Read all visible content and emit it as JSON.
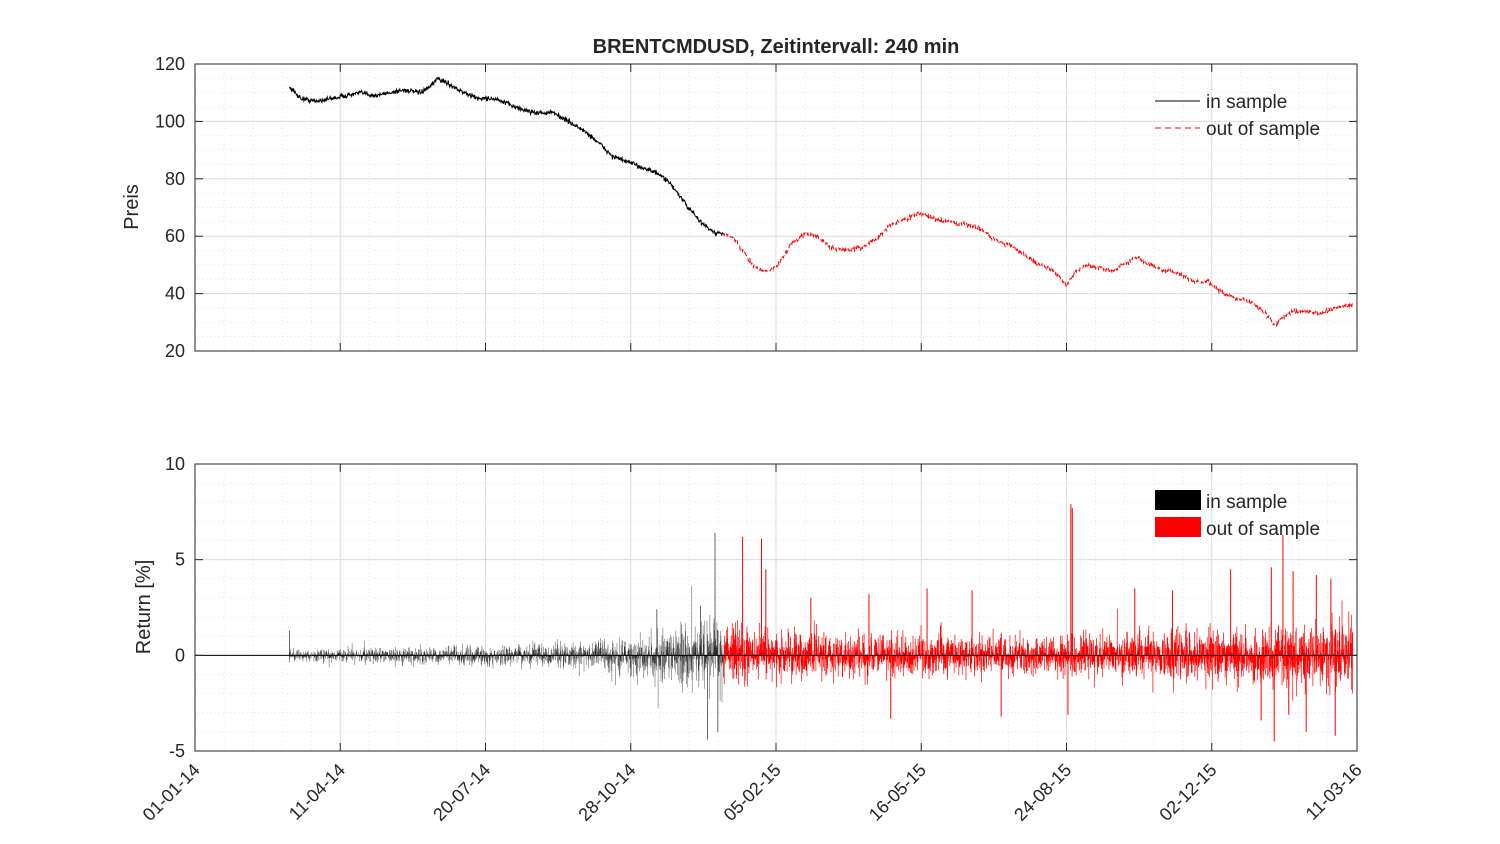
{
  "chart_data": [
    {
      "type": "line",
      "title": "BRENTCMDUSD, Zeitintervall: 240 min",
      "ylabel": "Preis",
      "xlabel": "",
      "x_type": "date",
      "xlim": [
        "2014-01-01",
        "2016-03-11"
      ],
      "ylim": [
        20,
        120
      ],
      "yticks": [
        20,
        40,
        60,
        80,
        100,
        120
      ],
      "xticks": [
        "01-01-14",
        "11-04-14",
        "20-07-14",
        "28-10-14",
        "05-02-15",
        "16-05-15",
        "24-08-15",
        "02-12-15",
        "11-03-16"
      ],
      "grid": true,
      "minor_grid": true,
      "legend_position": "top-right",
      "colors": {
        "in_sample": "#000000",
        "out_of_sample": "#ff0000"
      },
      "series": [
        {
          "name": "in sample",
          "style": "solid",
          "x": [
            "2014-03-07",
            "2014-03-15",
            "2014-03-25",
            "2014-04-05",
            "2014-04-15",
            "2014-04-25",
            "2014-05-05",
            "2014-05-15",
            "2014-05-25",
            "2014-06-05",
            "2014-06-12",
            "2014-06-17",
            "2014-06-25",
            "2014-07-05",
            "2014-07-15",
            "2014-07-25",
            "2014-08-05",
            "2014-08-15",
            "2014-08-25",
            "2014-09-05",
            "2014-09-15",
            "2014-09-25",
            "2014-10-05",
            "2014-10-15",
            "2014-10-25",
            "2014-11-05",
            "2014-11-15",
            "2014-11-25",
            "2014-12-05",
            "2014-12-15",
            "2014-12-25",
            "2014-12-31"
          ],
          "y": [
            112,
            108,
            107,
            108,
            109,
            110,
            109,
            110,
            111,
            110,
            112,
            115,
            113,
            110,
            108,
            108,
            106,
            104,
            103,
            103,
            100,
            97,
            93,
            88,
            86,
            84,
            82,
            78,
            71,
            65,
            61,
            61
          ]
        },
        {
          "name": "out of sample",
          "style": "dashed",
          "x": [
            "2014-12-31",
            "2015-01-07",
            "2015-01-13",
            "2015-01-20",
            "2015-01-27",
            "2015-02-05",
            "2015-02-15",
            "2015-02-25",
            "2015-03-05",
            "2015-03-15",
            "2015-03-25",
            "2015-04-05",
            "2015-04-15",
            "2015-04-25",
            "2015-05-05",
            "2015-05-15",
            "2015-05-25",
            "2015-06-05",
            "2015-06-15",
            "2015-06-25",
            "2015-07-05",
            "2015-07-15",
            "2015-07-25",
            "2015-08-05",
            "2015-08-15",
            "2015-08-24",
            "2015-08-31",
            "2015-09-08",
            "2015-09-15",
            "2015-09-25",
            "2015-10-05",
            "2015-10-12",
            "2015-10-20",
            "2015-10-30",
            "2015-11-10",
            "2015-11-20",
            "2015-11-30",
            "2015-12-10",
            "2015-12-20",
            "2015-12-30",
            "2016-01-08",
            "2016-01-15",
            "2016-01-20",
            "2016-01-28",
            "2016-02-05",
            "2016-02-15",
            "2016-02-25",
            "2016-03-08"
          ],
          "y": [
            61,
            59,
            55,
            50,
            48,
            49,
            57,
            61,
            60,
            56,
            55,
            56,
            59,
            64,
            66,
            68,
            66,
            65,
            64,
            63,
            59,
            57,
            54,
            50,
            48,
            43,
            48,
            50,
            49,
            48,
            51,
            53,
            50,
            48,
            47,
            44,
            44,
            40,
            38,
            37,
            33,
            29,
            32,
            34,
            34,
            33,
            35,
            36
          ]
        }
      ]
    },
    {
      "type": "bar",
      "title": "",
      "ylabel": "Return [%]",
      "xlabel": "",
      "x_type": "date",
      "xlim": [
        "2014-01-01",
        "2016-03-11"
      ],
      "ylim": [
        -5,
        10
      ],
      "yticks": [
        -5,
        0,
        5,
        10
      ],
      "xticks": [
        "01-01-14",
        "11-04-14",
        "20-07-14",
        "28-10-14",
        "05-02-15",
        "16-05-15",
        "24-08-15",
        "02-12-15",
        "11-03-16"
      ],
      "grid": true,
      "minor_grid": true,
      "legend_position": "top-right",
      "colors": {
        "in_sample": "#000000",
        "out_of_sample": "#ff0000"
      },
      "sample_period_hours": 4,
      "series": [
        {
          "name": "in sample",
          "x_range": [
            "2014-03-07",
            "2014-12-31"
          ],
          "amplitude_envelope": [
            [
              0.0,
              0.5
            ],
            [
              0.3,
              0.7
            ],
            [
              0.6,
              1.0
            ],
            [
              0.75,
              1.4
            ],
            [
              0.9,
              2.4
            ],
            [
              1.0,
              3.2
            ]
          ],
          "spikes": [
            {
              "x": "2014-03-07",
              "y": 1.3
            },
            {
              "x": "2014-11-15",
              "y": 2.4
            },
            {
              "x": "2014-12-25",
              "y": 6.4
            },
            {
              "x": "2014-12-20",
              "y": -4.4
            },
            {
              "x": "2014-12-27",
              "y": -4.0
            },
            {
              "x": "2014-12-15",
              "y": 2.6
            }
          ]
        },
        {
          "name": "out of sample",
          "x_range": [
            "2014-12-31",
            "2016-03-08"
          ],
          "amplitude_envelope": [
            [
              0.0,
              2.2
            ],
            [
              0.2,
              1.8
            ],
            [
              0.5,
              1.6
            ],
            [
              0.7,
              2.0
            ],
            [
              0.85,
              2.2
            ],
            [
              1.0,
              3.0
            ]
          ],
          "spikes": [
            {
              "x": "2015-01-13",
              "y": 6.2
            },
            {
              "x": "2015-01-26",
              "y": 6.1
            },
            {
              "x": "2015-01-29",
              "y": 4.5
            },
            {
              "x": "2015-03-01",
              "y": 3.0
            },
            {
              "x": "2015-04-10",
              "y": 3.2
            },
            {
              "x": "2015-05-20",
              "y": 3.5
            },
            {
              "x": "2015-06-20",
              "y": 3.4
            },
            {
              "x": "2015-08-27",
              "y": 7.9
            },
            {
              "x": "2015-08-28",
              "y": 7.7
            },
            {
              "x": "2015-08-25",
              "y": -3.1
            },
            {
              "x": "2015-07-10",
              "y": -3.2
            },
            {
              "x": "2015-04-25",
              "y": -3.3
            },
            {
              "x": "2015-10-10",
              "y": 3.5
            },
            {
              "x": "2015-11-05",
              "y": 3.4
            },
            {
              "x": "2015-12-15",
              "y": 4.5
            },
            {
              "x": "2016-01-12",
              "y": 4.6
            },
            {
              "x": "2016-01-20",
              "y": 6.3
            },
            {
              "x": "2016-01-27",
              "y": 4.4
            },
            {
              "x": "2016-02-12",
              "y": 4.2
            },
            {
              "x": "2016-02-22",
              "y": 4.0
            },
            {
              "x": "2016-01-14",
              "y": -4.5
            },
            {
              "x": "2016-01-05",
              "y": -3.4
            },
            {
              "x": "2016-02-05",
              "y": -4.0
            },
            {
              "x": "2016-02-25",
              "y": -4.2
            },
            {
              "x": "2016-01-24",
              "y": -3.1
            }
          ]
        }
      ]
    }
  ]
}
